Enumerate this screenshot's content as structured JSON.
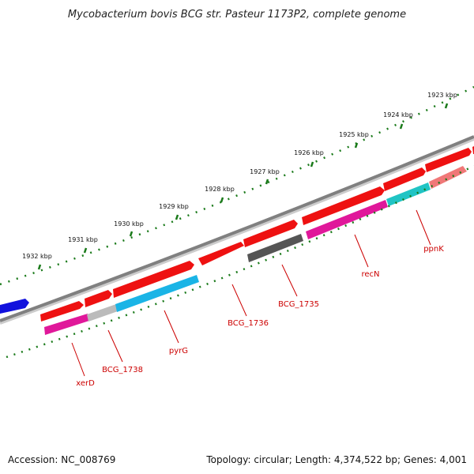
{
  "title": "Mycobacterium bovis BCG str. Pasteur 1173P2, complete genome",
  "footer": {
    "accession": "Accession: NC_008769",
    "summary": "Topology: circular; Length: 4,374,522 bp; Genes: 4,001"
  },
  "colors": {
    "backbone": "#808080",
    "ruler_dots": "#1a7a1a",
    "gene_red": "#ee1111",
    "gene_magenta": "#e0189a",
    "gene_cyan": "#1ab4e6",
    "gene_teal": "#20c4c4",
    "gene_gray": "#555555",
    "gene_pink": "#f07878",
    "gene_lightgray": "#bbbbbb",
    "gene_blue": "#1111dd",
    "label_red": "#cc0000"
  },
  "kbp_ticks": [
    "1923 kbp",
    "1924 kbp",
    "1925 kbp",
    "1926 kbp",
    "1927 kbp",
    "1928 kbp",
    "1929 kbp",
    "1930 kbp",
    "1931 kbp",
    "1932 kbp"
  ],
  "gene_labels": [
    "ppnK",
    "recN",
    "BCG_1735",
    "BCG_1736",
    "pyrG",
    "BCG_1738",
    "xerD"
  ]
}
